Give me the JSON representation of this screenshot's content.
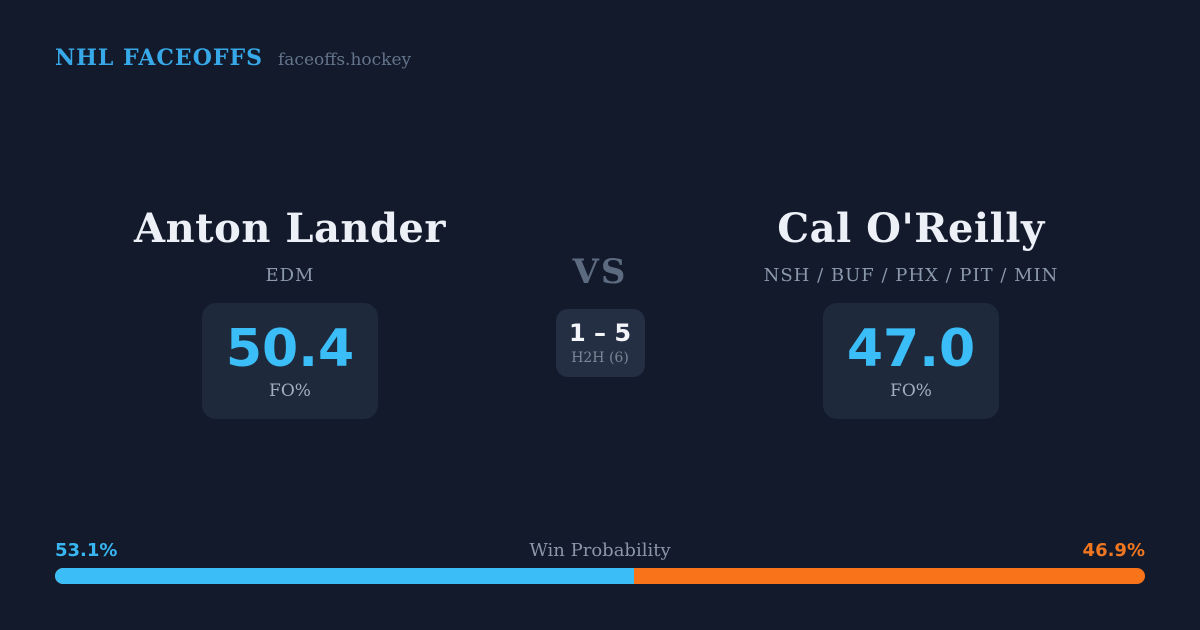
{
  "header": {
    "brand": "NHL FACEOFFS",
    "site": "faceoffs.hockey"
  },
  "players": {
    "left": {
      "name": "Anton Lander",
      "teams": "EDM",
      "stat_value": "50.4",
      "stat_label": "FO%"
    },
    "right": {
      "name": "Cal O'Reilly",
      "teams": "NSH / BUF / PHX / PIT / MIN",
      "stat_value": "47.0",
      "stat_label": "FO%"
    }
  },
  "center": {
    "vs_label": "VS",
    "h2h_score": "1 – 5",
    "h2h_label": "H2H (6)"
  },
  "win_probability": {
    "title": "Win Probability",
    "left_pct_label": "53.1%",
    "right_pct_label": "46.9%",
    "left_value": 53.1,
    "right_value": 46.9
  },
  "colors": {
    "background": "#121a2c",
    "panel": "#1e2a3b",
    "panel_h2h": "#242f44",
    "accent_blue": "#3bbdf8",
    "accent_orange": "#f8731a",
    "brand_blue": "#38a9e8"
  }
}
